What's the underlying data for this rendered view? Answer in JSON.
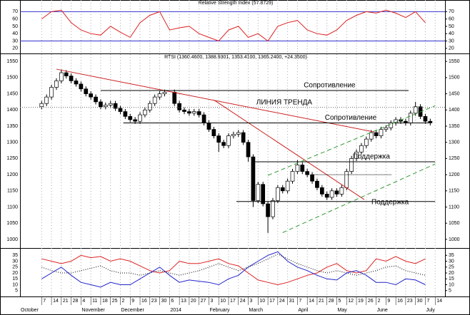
{
  "chart_data": [
    {
      "type": "line",
      "title": "Relative Strength Index (57.8729)",
      "ylim": [
        14,
        82
      ],
      "yticks": [
        20,
        30,
        40,
        50,
        60,
        70
      ],
      "levels": [
        70,
        30
      ],
      "level_color": "#3333cc",
      "color": "#dd2222",
      "x": [
        0,
        1,
        2,
        3,
        4,
        5,
        6,
        7,
        8,
        9,
        10,
        11,
        12,
        13,
        14,
        15,
        16,
        17,
        18,
        19,
        20,
        21,
        22,
        23,
        24,
        25,
        26,
        27,
        28,
        29,
        30,
        31,
        32,
        33,
        34,
        35,
        36,
        37,
        38,
        39
      ],
      "values": [
        60,
        70,
        72,
        55,
        45,
        40,
        38,
        50,
        42,
        35,
        55,
        65,
        70,
        45,
        48,
        50,
        40,
        35,
        30,
        45,
        50,
        35,
        40,
        30,
        50,
        55,
        58,
        45,
        40,
        38,
        45,
        58,
        65,
        70,
        68,
        72,
        68,
        62,
        70,
        55
      ]
    },
    {
      "type": "candlestick",
      "title": "RTSI (1360.4600, 1388.9301, 1353.4100, 1365.2400, +24.3500)",
      "ylim": [
        980,
        1568
      ],
      "yticks": [
        1000,
        1050,
        1100,
        1150,
        1200,
        1250,
        1300,
        1350,
        1400,
        1450,
        1500,
        1550
      ],
      "xlim": [
        -2.2,
        41
      ],
      "xticks": [
        {
          "value": 0,
          "label": "7"
        },
        {
          "value": 1,
          "label": "14"
        },
        {
          "value": 2,
          "label": "21"
        },
        {
          "value": 3,
          "label": "28"
        },
        {
          "value": 4,
          "label": "4"
        },
        {
          "value": 5,
          "label": "11"
        },
        {
          "value": 6,
          "label": "18"
        },
        {
          "value": 7,
          "label": "25"
        },
        {
          "value": 8,
          "label": "2"
        },
        {
          "value": 9,
          "label": "9"
        },
        {
          "value": 10,
          "label": "16"
        },
        {
          "value": 11,
          "label": "23"
        },
        {
          "value": 12,
          "label": "30"
        },
        {
          "value": 13,
          "label": "6"
        },
        {
          "value": 14,
          "label": "13"
        },
        {
          "value": 15,
          "label": "20"
        },
        {
          "value": 16,
          "label": "27"
        },
        {
          "value": 17,
          "label": "3"
        },
        {
          "value": 18,
          "label": "10"
        },
        {
          "value": 19,
          "label": "17"
        },
        {
          "value": 20,
          "label": "24"
        },
        {
          "value": 21,
          "label": "3"
        },
        {
          "value": 22,
          "label": "10"
        },
        {
          "value": 23,
          "label": "17"
        },
        {
          "value": 24,
          "label": "24"
        },
        {
          "value": 25,
          "label": "31"
        },
        {
          "value": 26,
          "label": "7"
        },
        {
          "value": 27,
          "label": "14"
        },
        {
          "value": 28,
          "label": "21"
        },
        {
          "value": 29,
          "label": "28"
        },
        {
          "value": 30,
          "label": "5"
        },
        {
          "value": 31,
          "label": "12"
        },
        {
          "value": 32,
          "label": "19"
        },
        {
          "value": 33,
          "label": "26"
        },
        {
          "value": 34,
          "label": "2"
        },
        {
          "value": 35,
          "label": "9"
        },
        {
          "value": 36,
          "label": "16"
        },
        {
          "value": 37,
          "label": "23"
        },
        {
          "value": 38,
          "label": "30"
        },
        {
          "value": 39,
          "label": "7"
        },
        {
          "value": 40,
          "label": "14"
        }
      ],
      "months": [
        {
          "value": -2.2,
          "label": "October"
        },
        {
          "value": 4,
          "label": "November"
        },
        {
          "value": 8,
          "label": "December"
        },
        {
          "value": 13,
          "label": "2014"
        },
        {
          "value": 17,
          "label": "February"
        },
        {
          "value": 21,
          "label": "March"
        },
        {
          "value": 26,
          "label": "April"
        },
        {
          "value": 30,
          "label": "May"
        },
        {
          "value": 34,
          "label": "June"
        },
        {
          "value": 39,
          "label": "July"
        }
      ],
      "x": [
        0,
        0.5,
        1,
        1.5,
        2,
        2.5,
        3,
        3.5,
        4,
        4.5,
        5,
        5.5,
        6,
        6.5,
        7,
        7.5,
        8,
        8.5,
        9,
        9.5,
        10,
        10.5,
        11,
        11.5,
        12,
        12.5,
        13.5,
        14,
        14.5,
        15,
        15.5,
        16,
        16.5,
        17,
        17.5,
        18,
        18.5,
        19,
        19.5,
        20,
        20.5,
        21,
        21.5,
        22,
        22.5,
        23,
        23.5,
        24,
        24.5,
        25,
        25.5,
        26,
        26.5,
        27,
        27.5,
        28,
        28.5,
        29,
        29.5,
        30,
        30.5,
        31,
        31.5,
        32,
        32.5,
        33,
        33.5,
        34,
        34.5,
        35,
        35.5,
        36,
        36.5,
        37,
        37.5,
        38,
        38.5,
        39,
        39.5
      ],
      "open": [
        1410,
        1420,
        1440,
        1470,
        1490,
        1515,
        1505,
        1490,
        1480,
        1465,
        1450,
        1440,
        1425,
        1410,
        1415,
        1420,
        1405,
        1395,
        1380,
        1370,
        1365,
        1385,
        1400,
        1420,
        1440,
        1450,
        1455,
        1420,
        1400,
        1395,
        1390,
        1395,
        1385,
        1360,
        1340,
        1320,
        1300,
        1290,
        1320,
        1325,
        1330,
        1300,
        1255,
        1120,
        1170,
        1110,
        1070,
        1120,
        1160,
        1150,
        1180,
        1210,
        1230,
        1210,
        1200,
        1180,
        1160,
        1140,
        1130,
        1150,
        1140,
        1160,
        1210,
        1250,
        1270,
        1290,
        1310,
        1330,
        1320,
        1340,
        1345,
        1360,
        1370,
        1365,
        1360,
        1390,
        1410,
        1380,
        1365
      ],
      "high": [
        1428,
        1448,
        1478,
        1498,
        1525,
        1523,
        1513,
        1498,
        1488,
        1473,
        1458,
        1448,
        1433,
        1423,
        1428,
        1428,
        1413,
        1403,
        1388,
        1378,
        1393,
        1408,
        1428,
        1448,
        1458,
        1463,
        1463,
        1428,
        1408,
        1403,
        1403,
        1403,
        1393,
        1368,
        1348,
        1328,
        1308,
        1328,
        1333,
        1338,
        1338,
        1308,
        1263,
        1178,
        1178,
        1118,
        1128,
        1168,
        1168,
        1188,
        1218,
        1245,
        1238,
        1218,
        1208,
        1188,
        1168,
        1148,
        1158,
        1158,
        1168,
        1218,
        1258,
        1278,
        1298,
        1318,
        1338,
        1338,
        1348,
        1353,
        1368,
        1378,
        1378,
        1373,
        1398,
        1425,
        1418,
        1388,
        1373
      ],
      "low": [
        1402,
        1412,
        1432,
        1462,
        1482,
        1497,
        1482,
        1472,
        1457,
        1442,
        1432,
        1417,
        1402,
        1402,
        1407,
        1397,
        1387,
        1372,
        1362,
        1357,
        1357,
        1377,
        1392,
        1412,
        1432,
        1442,
        1412,
        1392,
        1387,
        1382,
        1382,
        1377,
        1352,
        1332,
        1312,
        1270,
        1282,
        1282,
        1312,
        1317,
        1292,
        1240,
        1100,
        1112,
        1102,
        1020,
        1062,
        1112,
        1142,
        1142,
        1172,
        1202,
        1202,
        1192,
        1172,
        1152,
        1132,
        1122,
        1122,
        1132,
        1132,
        1152,
        1202,
        1242,
        1262,
        1282,
        1302,
        1312,
        1312,
        1332,
        1337,
        1352,
        1357,
        1352,
        1352,
        1382,
        1372,
        1357,
        1352
      ],
      "close": [
        1420,
        1440,
        1470,
        1490,
        1515,
        1505,
        1490,
        1480,
        1465,
        1450,
        1440,
        1425,
        1410,
        1415,
        1420,
        1405,
        1395,
        1380,
        1370,
        1365,
        1385,
        1400,
        1420,
        1440,
        1450,
        1455,
        1420,
        1400,
        1395,
        1390,
        1395,
        1385,
        1360,
        1340,
        1320,
        1300,
        1290,
        1320,
        1325,
        1330,
        1300,
        1255,
        1120,
        1170,
        1110,
        1070,
        1120,
        1160,
        1150,
        1180,
        1210,
        1230,
        1210,
        1200,
        1180,
        1160,
        1140,
        1130,
        1150,
        1140,
        1160,
        1210,
        1250,
        1270,
        1290,
        1310,
        1330,
        1320,
        1340,
        1345,
        1360,
        1370,
        1365,
        1360,
        1390,
        1410,
        1380,
        1365,
        1360
      ],
      "lines": [
        {
          "x": [
            -2.2,
            41
          ],
          "y": [
            1408,
            1408
          ],
          "color": "#666666",
          "dash": "1,2"
        },
        {
          "x": [
            1.5,
            33.8
          ],
          "y": [
            1526,
            1332
          ],
          "color": "#cc2222",
          "label": "ЛИНИЯ ТРЕНДА"
        },
        {
          "x": [
            17.5,
            32.8
          ],
          "y": [
            1431,
            1123
          ],
          "color": "#cc2222"
        },
        {
          "x": [
            6,
            37.3
          ],
          "y": [
            1460,
            1460
          ],
          "color": "#000000",
          "label": "Сопротивление"
        },
        {
          "x": [
            8.3,
            39.4
          ],
          "y": [
            1360,
            1360
          ],
          "color": "#000000",
          "label": "Сопротивление"
        },
        {
          "x": [
            21.7,
            40
          ],
          "y": [
            1240,
            1240
          ],
          "color": "#000000",
          "label": "Поддержка"
        },
        {
          "x": [
            19.8,
            40
          ],
          "y": [
            1117,
            1117
          ],
          "color": "#000000",
          "label": "Поддержка"
        },
        {
          "x": [
            27.6,
            35.6
          ],
          "y": [
            1200,
            1200
          ],
          "color": "#000000",
          "dash": "1,1"
        },
        {
          "x": [
            23,
            40
          ],
          "y": [
            1198,
            1413
          ],
          "color": "#339933",
          "dash": "6,4"
        },
        {
          "x": [
            24.5,
            40
          ],
          "y": [
            1021,
            1233
          ],
          "color": "#339933",
          "dash": "6,4"
        }
      ]
    },
    {
      "type": "line",
      "ylim": [
        0,
        40
      ],
      "yticks": [
        5,
        10,
        15,
        20,
        25,
        30,
        35
      ],
      "x": [
        0,
        1,
        2,
        3,
        4,
        5,
        6,
        7,
        8,
        9,
        10,
        11,
        12,
        13,
        14,
        15,
        16,
        17,
        18,
        19,
        20,
        21,
        22,
        23,
        24,
        25,
        26,
        27,
        28,
        29,
        30,
        31,
        32,
        33,
        34,
        35,
        36,
        37,
        38,
        39
      ],
      "series": [
        {
          "color": "#dd2222",
          "values": [
            32,
            30,
            28,
            30,
            35,
            33,
            34,
            30,
            32,
            30,
            26,
            22,
            20,
            22,
            30,
            28,
            28,
            30,
            32,
            28,
            26,
            20,
            14,
            12,
            10,
            12,
            15,
            18,
            20,
            25,
            28,
            22,
            20,
            22,
            32,
            30,
            34,
            30,
            28,
            32
          ]
        },
        {
          "color": "#2222cc",
          "values": [
            15,
            20,
            25,
            18,
            12,
            10,
            8,
            12,
            10,
            10,
            15,
            20,
            25,
            18,
            12,
            14,
            13,
            12,
            10,
            15,
            18,
            25,
            30,
            35,
            38,
            30,
            25,
            22,
            18,
            15,
            14,
            20,
            22,
            18,
            12,
            12,
            10,
            15,
            14,
            10
          ]
        },
        {
          "color": "#000000",
          "dash": "1,2",
          "values": [
            25,
            22,
            20,
            20,
            22,
            24,
            26,
            22,
            20,
            20,
            18,
            20,
            22,
            20,
            18,
            20,
            22,
            25,
            28,
            25,
            22,
            25,
            28,
            32,
            36,
            32,
            28,
            25,
            22,
            20,
            22,
            20,
            18,
            20,
            22,
            25,
            26,
            22,
            20,
            18
          ]
        }
      ]
    }
  ]
}
